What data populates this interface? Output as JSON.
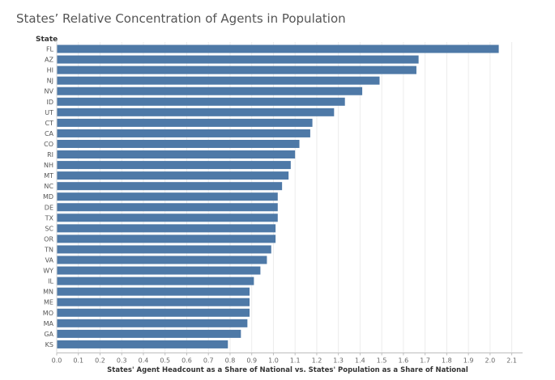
{
  "chart_data": {
    "type": "bar",
    "orientation": "horizontal",
    "title": "States’ Relative Concentration of Agents in Population",
    "category_label": "State",
    "xlabel": "States' Agent Headcount as a Share of National vs. States' Population as a Share of National",
    "categories": [
      "FL",
      "AZ",
      "HI",
      "NJ",
      "NV",
      "ID",
      "UT",
      "CT",
      "CA",
      "CO",
      "RI",
      "NH",
      "MT",
      "NC",
      "MD",
      "DE",
      "TX",
      "SC",
      "OR",
      "TN",
      "VA",
      "WY",
      "IL",
      "MN",
      "ME",
      "MO",
      "MA",
      "GA",
      "KS"
    ],
    "values": [
      2.04,
      1.67,
      1.66,
      1.49,
      1.41,
      1.33,
      1.28,
      1.18,
      1.17,
      1.12,
      1.1,
      1.08,
      1.07,
      1.04,
      1.02,
      1.02,
      1.02,
      1.01,
      1.01,
      0.99,
      0.97,
      0.94,
      0.91,
      0.89,
      0.89,
      0.89,
      0.88,
      0.85,
      0.79
    ],
    "xlim": [
      0,
      2.1
    ],
    "xticks": [
      "0.0",
      "0.1",
      "0.2",
      "0.3",
      "0.4",
      "0.5",
      "0.6",
      "0.7",
      "0.8",
      "0.9",
      "1.0",
      "1.1",
      "1.2",
      "1.3",
      "1.4",
      "1.5",
      "1.6",
      "1.7",
      "1.8",
      "1.9",
      "2.0",
      "2.1"
    ],
    "grid": true,
    "bar_color": "#4e79a7"
  }
}
